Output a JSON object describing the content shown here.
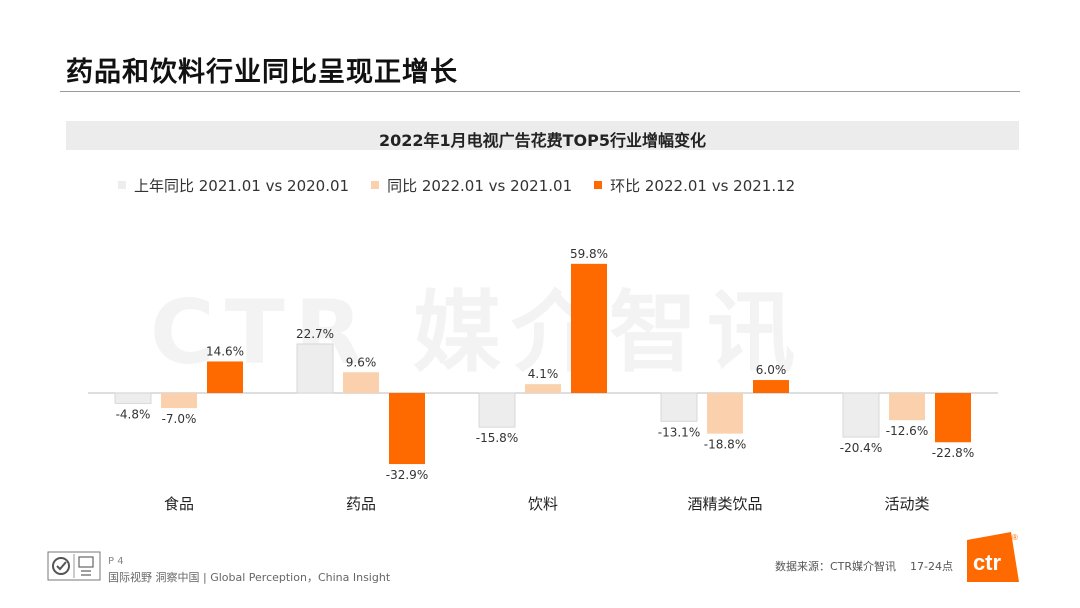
{
  "page": {
    "title": "药品和饮料行业同比呈现正增长"
  },
  "watermark": "CTR 媒介智讯",
  "chart_data": {
    "type": "bar",
    "title": "2022年1月电视广告花费TOP5行业增幅变化",
    "categories": [
      "食品",
      "药品",
      "饮料",
      "酒精类饮品",
      "活动类"
    ],
    "series": [
      {
        "name": "上年同比 2021.01 vs 2020.01",
        "color": "#ededed",
        "values": [
          -4.8,
          22.7,
          -15.8,
          -13.1,
          -20.4
        ],
        "labels": [
          "-4.8%",
          "22.7%",
          "-15.8%",
          "-13.1%",
          "-20.4%"
        ]
      },
      {
        "name": "同比 2022.01 vs 2021.01",
        "color": "#fbd0ad",
        "values": [
          -7.0,
          9.6,
          4.1,
          -18.8,
          -12.6
        ],
        "labels": [
          "-7.0%",
          "9.6%",
          "4.1%",
          "-18.8%",
          "-12.6%"
        ]
      },
      {
        "name": "环比 2022.01 vs 2021.12",
        "color": "#ff6a00",
        "values": [
          14.6,
          -32.9,
          59.8,
          6.0,
          -22.8
        ],
        "labels": [
          "14.6%",
          "-32.9%",
          "59.8%",
          "6.0%",
          "-22.8%"
        ]
      }
    ],
    "value_unit": "%",
    "ylim": [
      -35,
      62
    ],
    "grid": false,
    "legend_position": "top-left"
  },
  "footer": {
    "page_number": "P 4",
    "tagline": "国际视野  洞察中国 | Global Perception，China Insight",
    "source": "数据来源：CTR媒介智讯",
    "code": "17-24点",
    "brand": "ctr",
    "registered_mark": "®"
  }
}
